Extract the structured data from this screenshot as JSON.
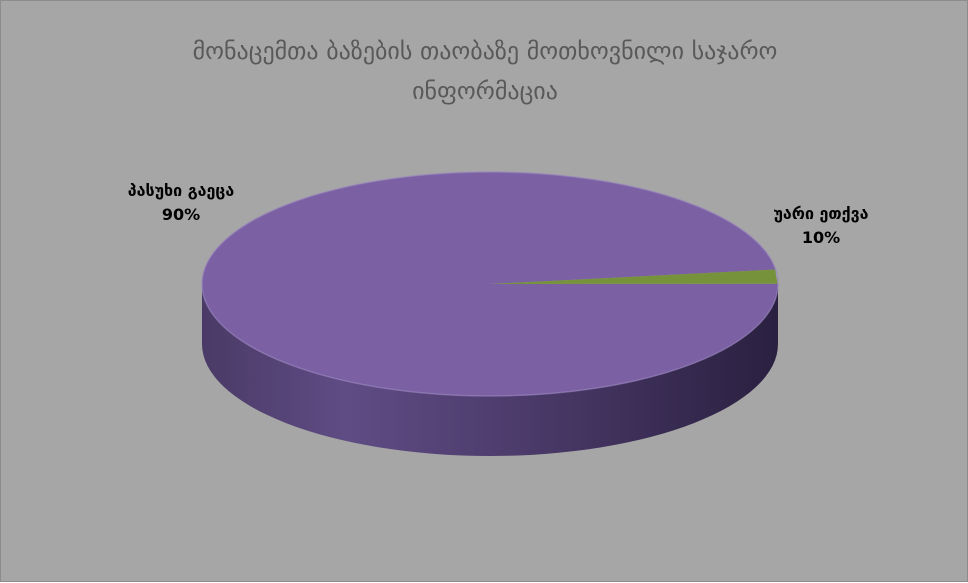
{
  "chart_data": {
    "type": "pie",
    "title_lines": [
      "მონაცემთა ბაზების თაობაზე მოთხოვნილი საჯარო",
      "ინფორმაცია"
    ],
    "categories": [
      "პასუხი გაეცა",
      "უარი ეთქვა"
    ],
    "values": [
      90,
      10
    ],
    "value_labels": [
      "90%",
      "10%"
    ],
    "colors": [
      "#7b60a3",
      "#76933c"
    ],
    "style": "3d",
    "legend": "none"
  }
}
